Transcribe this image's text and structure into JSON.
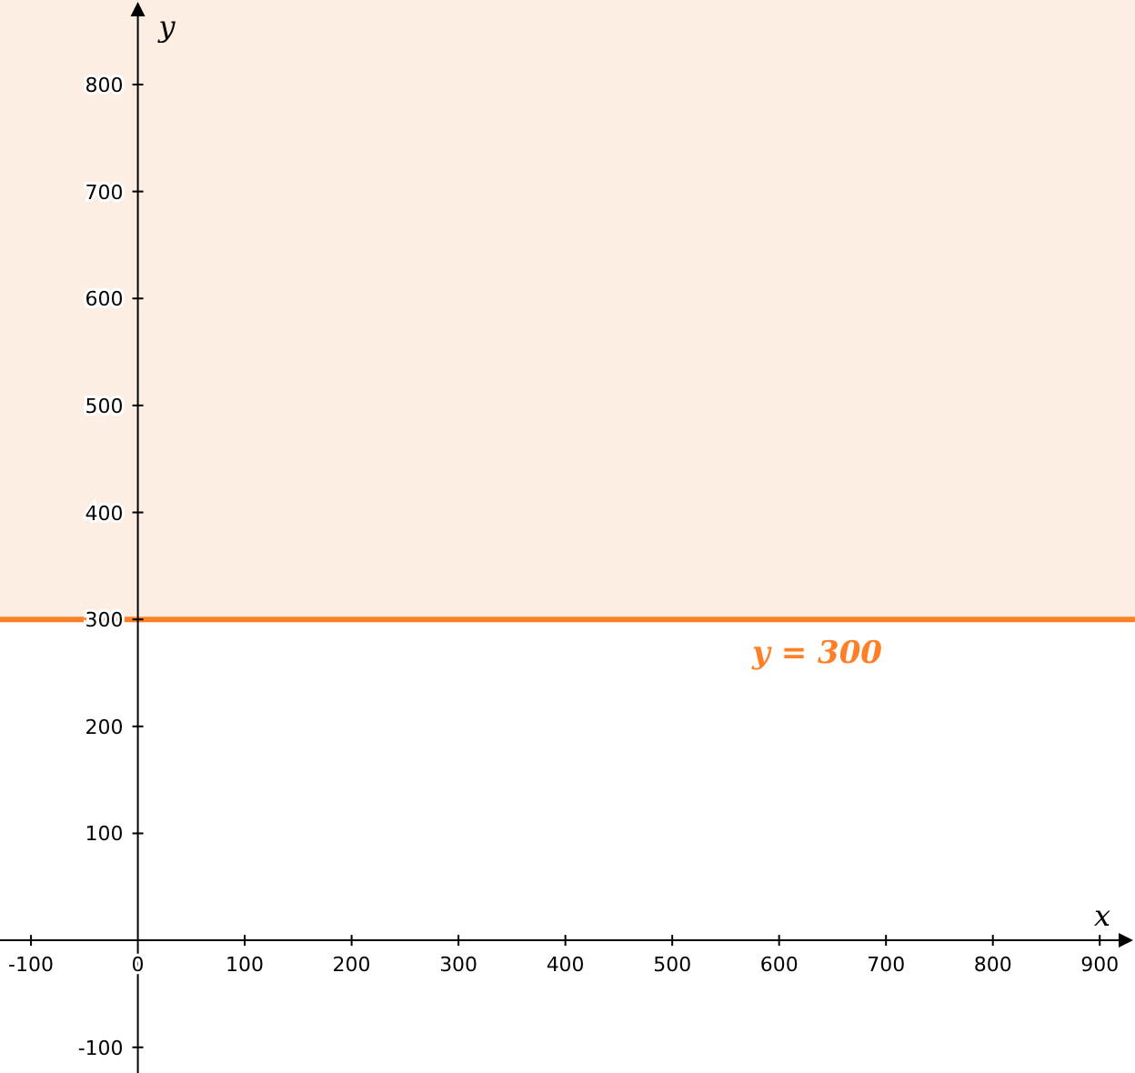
{
  "chart_data": {
    "type": "line",
    "xlabel": "x",
    "ylabel": "y",
    "xlim": [
      -129,
      933
    ],
    "ylim": [
      -124,
      879
    ],
    "xticks": [
      -100,
      0,
      100,
      200,
      300,
      400,
      500,
      600,
      700,
      800,
      900
    ],
    "yticks": [
      -100,
      100,
      200,
      300,
      400,
      500,
      600,
      700,
      800
    ],
    "grid": false,
    "line_style": "solid",
    "marker": "none",
    "series": [
      {
        "name": "y = 300",
        "color": "#ff7f27",
        "x": [
          -129,
          933
        ],
        "values": [
          300,
          300
        ]
      }
    ],
    "bands": [
      {
        "axis": "y",
        "from": 300,
        "to": 879,
        "color": "#fdeee4"
      }
    ]
  }
}
